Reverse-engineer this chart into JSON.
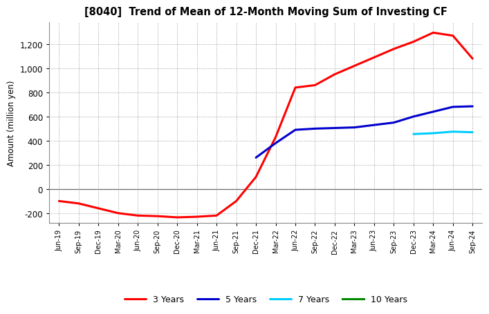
{
  "title": "[8040]  Trend of Mean of 12-Month Moving Sum of Investing CF",
  "ylabel": "Amount (million yen)",
  "background_color": "#ffffff",
  "plot_bg_color": "#ffffff",
  "grid_color": "#999999",
  "x_labels": [
    "Jun-19",
    "Sep-19",
    "Dec-19",
    "Mar-20",
    "Jun-20",
    "Sep-20",
    "Dec-20",
    "Mar-21",
    "Jun-21",
    "Sep-21",
    "Dec-21",
    "Mar-22",
    "Jun-22",
    "Sep-22",
    "Dec-22",
    "Mar-23",
    "Jun-23",
    "Sep-23",
    "Dec-23",
    "Mar-24",
    "Jun-24",
    "Sep-24"
  ],
  "ylim": [
    -280,
    1380
  ],
  "yticks": [
    -200,
    0,
    200,
    400,
    600,
    800,
    1000,
    1200
  ],
  "series": [
    {
      "label": "3 Years",
      "color": "#ff0000",
      "x": [
        "Jun-19",
        "Sep-19",
        "Dec-19",
        "Mar-20",
        "Jun-20",
        "Sep-20",
        "Dec-20",
        "Mar-21",
        "Jun-21",
        "Sep-21",
        "Dec-21",
        "Mar-22",
        "Jun-22",
        "Sep-22",
        "Dec-22",
        "Mar-23",
        "Jun-23",
        "Sep-23",
        "Dec-23",
        "Mar-24",
        "Jun-24",
        "Sep-24"
      ],
      "y": [
        -100,
        -120,
        -160,
        -200,
        -220,
        -225,
        -235,
        -230,
        -220,
        -100,
        100,
        430,
        840,
        860,
        950,
        1020,
        1090,
        1160,
        1220,
        1295,
        1270,
        1080
      ]
    },
    {
      "label": "5 Years",
      "color": "#0000cc",
      "x": [
        "Dec-21",
        "Mar-22",
        "Jun-22",
        "Sep-22",
        "Dec-22",
        "Mar-23",
        "Jun-23",
        "Sep-23",
        "Dec-23",
        "Mar-24",
        "Jun-24",
        "Sep-24"
      ],
      "y": [
        260,
        380,
        490,
        500,
        505,
        510,
        530,
        550,
        600,
        640,
        680,
        685
      ]
    },
    {
      "label": "7 Years",
      "color": "#00ccff",
      "x": [
        "Dec-23",
        "Mar-24",
        "Jun-24",
        "Sep-24"
      ],
      "y": [
        455,
        462,
        475,
        470
      ]
    },
    {
      "label": "10 Years",
      "color": "#008800",
      "x": [],
      "y": []
    }
  ],
  "linewidth": 2.2
}
